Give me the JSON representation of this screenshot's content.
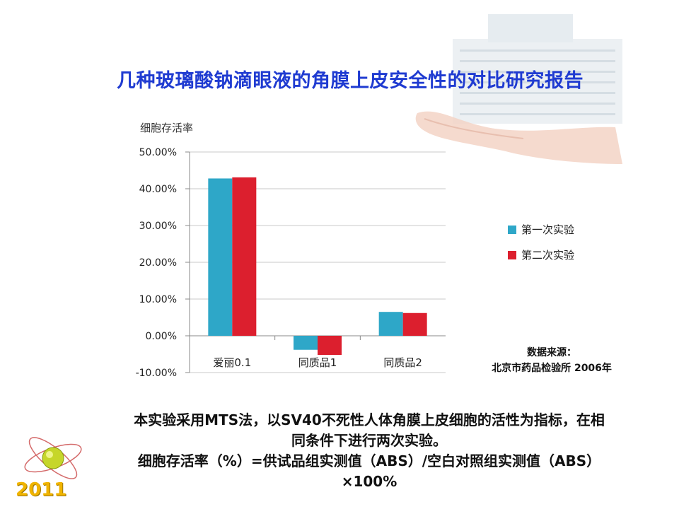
{
  "slide": {
    "title": "几种玻璃酸钠滴眼液的角膜上皮安全性的对比研究报告",
    "source_line1": "数据来源：",
    "source_line2": "北京市药品检验所 2006年",
    "desc_lines": [
      "本实验采用MTS法，以SV40不死性人体角膜上皮细胞的活性为指标，在相",
      "同条件下进行两次实验。",
      "细胞存活率（%）=供试品组实测值（ABS）/空白对照组实测值（ABS）",
      "×100%"
    ],
    "year": "2011",
    "colors": {
      "title": "#1f3bd1",
      "series1": "#2ea7c8",
      "series2": "#dc1f2e",
      "year": "#f0b400"
    }
  },
  "chart_data": {
    "type": "bar",
    "ylabel": "细胞存活率",
    "categories": [
      "爱丽0.1",
      "同质品1",
      "同质品2"
    ],
    "series": [
      {
        "name": "第一次实验",
        "values": [
          0.428,
          -0.038,
          0.065
        ]
      },
      {
        "name": "第二次实验",
        "values": [
          0.431,
          -0.052,
          0.062
        ]
      }
    ],
    "ylim": [
      -0.1,
      0.5
    ],
    "yticks": [
      0.5,
      0.4,
      0.3,
      0.2,
      0.1,
      0.0,
      -0.1
    ],
    "ytick_labels": [
      "50.00%",
      "40.00%",
      "30.00%",
      "20.00%",
      "10.00%",
      "0.00%",
      "-10.00%"
    ],
    "grid": true,
    "legend": "right"
  }
}
